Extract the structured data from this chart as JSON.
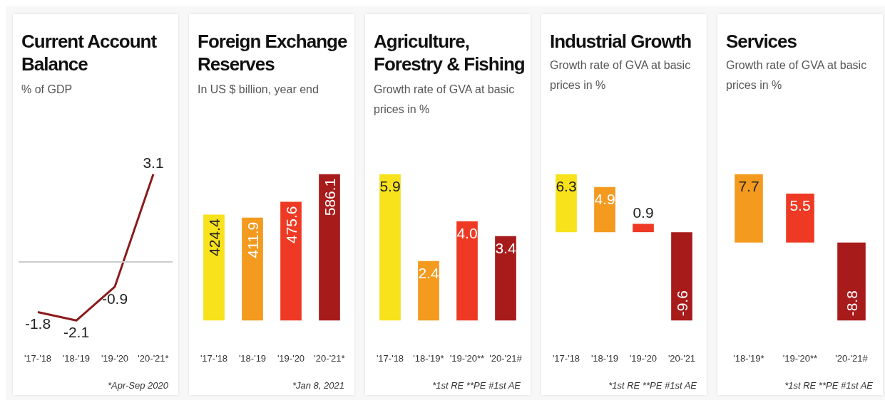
{
  "chart_data": [
    {
      "type": "line",
      "title": "Current Account Balance",
      "subtitle": "% of GDP",
      "categories": [
        "'17-'18",
        "'18-'19",
        "'19-'20",
        "'20-'21*"
      ],
      "values": [
        -1.8,
        -2.1,
        -0.9,
        3.1
      ],
      "color": "#8b1a1a",
      "data_labels": true,
      "marker": "none",
      "ref_lines": [
        {
          "axis": "y",
          "value": 0,
          "color": "#cccccc"
        }
      ],
      "annotations": [
        "*Apr-Sep 2020"
      ]
    },
    {
      "type": "bar",
      "title": "Foreign Exchange Reserves",
      "subtitle": "In US $ billion, year end",
      "categories": [
        "'17-'18",
        "'18-'19",
        "'19-'20",
        "'20-'21*"
      ],
      "values": [
        424.4,
        411.9,
        475.6,
        586.1
      ],
      "colors": [
        "#f7e21c",
        "#f39a1f",
        "#ee3a24",
        "#a81b1b"
      ],
      "data_labels": true,
      "annotations": [
        "*Jan 8, 2021"
      ]
    },
    {
      "type": "bar",
      "title": "Agriculture, Forestry & Fishing",
      "subtitle": "Growth rate of GVA at basic prices in %",
      "categories": [
        "'17-'18",
        "'18-'19*",
        "'19-'20**",
        "'20-'21#"
      ],
      "values": [
        5.9,
        2.4,
        4.0,
        3.4
      ],
      "value_labels": [
        "5.9",
        "2.4",
        "4.0",
        "3.4"
      ],
      "colors": [
        "#f7e21c",
        "#f39a1f",
        "#ee3a24",
        "#a81b1b"
      ],
      "annotations": [
        "*1st RE **PE #1st AE"
      ]
    },
    {
      "type": "bar",
      "title": "Industrial Growth",
      "subtitle": "Growth rate of GVA at basic prices in %",
      "categories": [
        "'17-'18",
        "'18-'19",
        "'19-'20",
        "'20-'21"
      ],
      "values": [
        6.3,
        4.9,
        0.9,
        -9.6
      ],
      "colors": [
        "#f7e21c",
        "#f39a1f",
        "#ee3a24",
        "#a81b1b"
      ],
      "data_labels": true,
      "annotations": [
        "*1st RE **PE #1st AE"
      ]
    },
    {
      "type": "bar",
      "title": "Services",
      "subtitle": "Growth rate of GVA at basic prices in %",
      "categories": [
        "'18-'19*",
        "'19-'20**",
        "'20-'21#"
      ],
      "values": [
        7.7,
        5.5,
        -8.8
      ],
      "colors": [
        "#f39a1f",
        "#ee3a24",
        "#a81b1b"
      ],
      "data_labels": true,
      "annotations": [
        "*1st RE **PE #1st AE"
      ]
    }
  ]
}
